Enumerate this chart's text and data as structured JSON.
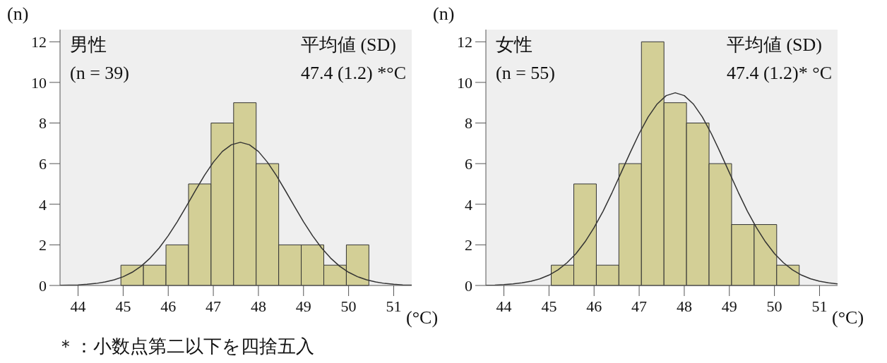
{
  "chart_data": [
    {
      "type": "histogram",
      "ylabel": "(n)",
      "xlabel": "(°C)",
      "bins": [
        44.95,
        45.45,
        45.95,
        46.45,
        46.95,
        47.45,
        47.95,
        48.45,
        48.95,
        49.45,
        49.95,
        50.45
      ],
      "values": [
        1,
        1,
        2,
        5,
        8,
        9,
        6,
        2,
        2,
        1,
        2
      ],
      "color": "#d3cf96",
      "series": [
        {
          "type": "line",
          "color": "#333333",
          "x": [
            43.6,
            43.8,
            44.0,
            44.2,
            44.4,
            44.6,
            44.8,
            45.0,
            45.2,
            45.4,
            45.6,
            45.8,
            46.0,
            46.2,
            46.4,
            46.6,
            46.8,
            47.0,
            47.2,
            47.4,
            47.6,
            47.8,
            48.0,
            48.2,
            48.4,
            48.6,
            48.8,
            49.0,
            49.2,
            49.4,
            49.6,
            49.8,
            50.0,
            50.2,
            50.4,
            50.6,
            50.8,
            51.0,
            51.2,
            51.4
          ],
          "values": [
            0.01,
            0.02,
            0.03,
            0.06,
            0.1,
            0.17,
            0.28,
            0.43,
            0.65,
            0.95,
            1.35,
            1.85,
            2.45,
            3.14,
            3.89,
            4.66,
            5.41,
            6.07,
            6.6,
            6.93,
            7.05,
            6.93,
            6.6,
            6.07,
            5.41,
            4.66,
            3.89,
            3.14,
            2.45,
            1.85,
            1.35,
            0.95,
            0.65,
            0.43,
            0.28,
            0.17,
            0.1,
            0.06,
            0.03,
            0.02
          ]
        }
      ],
      "xlim": [
        43.6,
        51.4
      ],
      "xticks": [
        44,
        45,
        46,
        47,
        48,
        49,
        50,
        51
      ],
      "ylim": [
        0,
        12.6
      ],
      "yticks": [
        0,
        2,
        4,
        6,
        8,
        10,
        12
      ],
      "grid": false,
      "annotations": [
        "男性",
        "(n = 39)",
        "平均値 (SD)",
        "47.4 (1.2) *°C",
        "＊：小数点第二以下を四捨五入"
      ]
    },
    {
      "type": "histogram",
      "ylabel": "(n)",
      "xlabel": "(°C)",
      "bins": [
        45.05,
        45.55,
        46.05,
        46.55,
        47.05,
        47.55,
        48.05,
        48.55,
        49.05,
        49.55,
        50.05,
        50.55
      ],
      "values": [
        1,
        5,
        1,
        6,
        12,
        9,
        8,
        6,
        3,
        3,
        1
      ],
      "color": "#d3cf96",
      "series": [
        {
          "type": "line",
          "color": "#333333",
          "x": [
            43.6,
            43.8,
            44.0,
            44.2,
            44.4,
            44.6,
            44.8,
            45.0,
            45.2,
            45.4,
            45.6,
            45.8,
            46.0,
            46.2,
            46.4,
            46.6,
            46.8,
            47.0,
            47.2,
            47.4,
            47.6,
            47.8,
            48.0,
            48.2,
            48.4,
            48.6,
            48.8,
            49.0,
            49.2,
            49.4,
            49.6,
            49.8,
            50.0,
            50.2,
            50.4,
            50.6,
            50.8,
            51.0,
            51.2,
            51.4
          ],
          "values": [
            0.01,
            0.02,
            0.04,
            0.08,
            0.13,
            0.21,
            0.33,
            0.51,
            0.77,
            1.12,
            1.57,
            2.15,
            2.85,
            3.66,
            4.58,
            5.56,
            6.54,
            7.48,
            8.3,
            8.94,
            9.35,
            9.49,
            9.35,
            8.94,
            8.3,
            7.48,
            6.54,
            5.56,
            4.58,
            3.66,
            2.85,
            2.15,
            1.57,
            1.12,
            0.77,
            0.51,
            0.33,
            0.21,
            0.13,
            0.08
          ]
        }
      ],
      "xlim": [
        43.6,
        51.4
      ],
      "xticks": [
        44,
        45,
        46,
        47,
        48,
        49,
        50,
        51
      ],
      "ylim": [
        0,
        12.6
      ],
      "yticks": [
        0,
        2,
        4,
        6,
        8,
        10,
        12
      ],
      "grid": false,
      "annotations": [
        "女性",
        "(n = 55)",
        "平均値 (SD)",
        "47.4 (1.2)* °C"
      ]
    }
  ]
}
